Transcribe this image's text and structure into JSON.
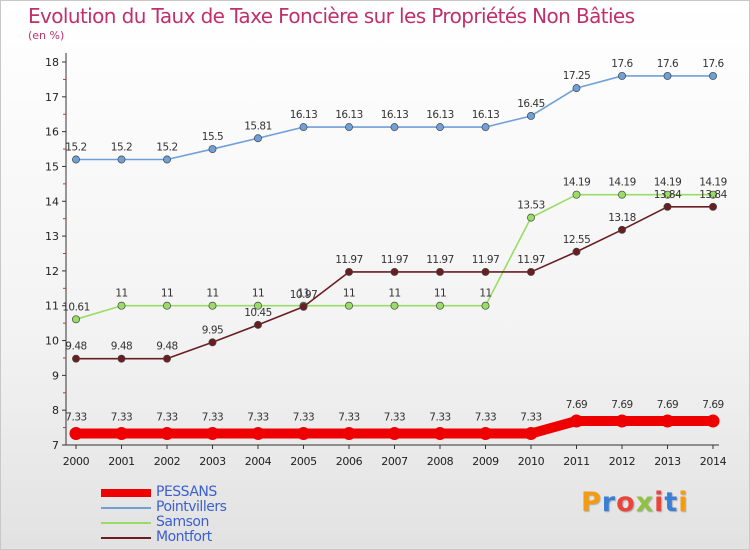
{
  "title": "Evolution du Taux de Taxe Foncière sur les Propriétés Non Bâties",
  "subtitle": "(en %)",
  "logo": {
    "text": "Proxiti",
    "colors": [
      "#f39c12",
      "#3a7fd5",
      "#e8463c",
      "#8fc23f",
      "#e8463c",
      "#3a7fd5",
      "#f39c12"
    ]
  },
  "chart_data": {
    "type": "line",
    "x": [
      "2000",
      "2001",
      "2002",
      "2003",
      "2004",
      "2005",
      "2006",
      "2007",
      "2008",
      "2009",
      "2010",
      "2011",
      "2012",
      "2013",
      "2014"
    ],
    "ylim": [
      7,
      18
    ],
    "yticks": [
      "7",
      "8",
      "9",
      "10",
      "11",
      "12",
      "13",
      "14",
      "15",
      "16",
      "17",
      "18"
    ],
    "grid": false,
    "legend_position": "bottom-left",
    "series": [
      {
        "name": "PESSANS",
        "color": "#ee0000",
        "values": [
          7.33,
          7.33,
          7.33,
          7.33,
          7.33,
          7.33,
          7.33,
          7.33,
          7.33,
          7.33,
          7.33,
          7.69,
          7.69,
          7.69,
          7.69
        ],
        "labels": [
          "7.33",
          "7.33",
          "7.33",
          "7.33",
          "7.33",
          "7.33",
          "7.33",
          "7.33",
          "7.33",
          "7.33",
          "7.33",
          "7.69",
          "7.69",
          "7.69",
          "7.69"
        ]
      },
      {
        "name": "Pointvillers",
        "color": "#6fa0d8",
        "values": [
          15.2,
          15.2,
          15.2,
          15.5,
          15.81,
          16.13,
          16.13,
          16.13,
          16.13,
          16.13,
          16.45,
          17.25,
          17.6,
          17.6,
          17.6
        ],
        "labels": [
          "15.2",
          "15.2",
          "15.2",
          "15.5",
          "15.81",
          "16.13",
          "16.13",
          "16.13",
          "16.13",
          "16.13",
          "16.45",
          "17.25",
          "17.6",
          "17.6",
          "17.6"
        ]
      },
      {
        "name": "Samson",
        "color": "#99dd66",
        "values": [
          10.61,
          11,
          11,
          11,
          11,
          11,
          11,
          11,
          11,
          11,
          13.53,
          14.19,
          14.19,
          14.19,
          14.19
        ],
        "labels": [
          "10.61",
          "11",
          "11",
          "11",
          "11",
          "11",
          "11",
          "11",
          "11",
          "11",
          "13.53",
          "14.19",
          "14.19",
          "14.19",
          "14.19"
        ]
      },
      {
        "name": "Montfort",
        "color": "#6b1e22",
        "values": [
          9.48,
          9.48,
          9.48,
          9.95,
          10.45,
          10.97,
          11.97,
          11.97,
          11.97,
          11.97,
          11.97,
          12.55,
          13.18,
          13.84,
          13.84
        ],
        "labels": [
          "9.48",
          "9.48",
          "9.48",
          "9.95",
          "10.45",
          "10.97",
          "11.97",
          "11.97",
          "11.97",
          "11.97",
          "11.97",
          "12.55",
          "13.18",
          "13.84",
          "13.84"
        ]
      }
    ]
  }
}
